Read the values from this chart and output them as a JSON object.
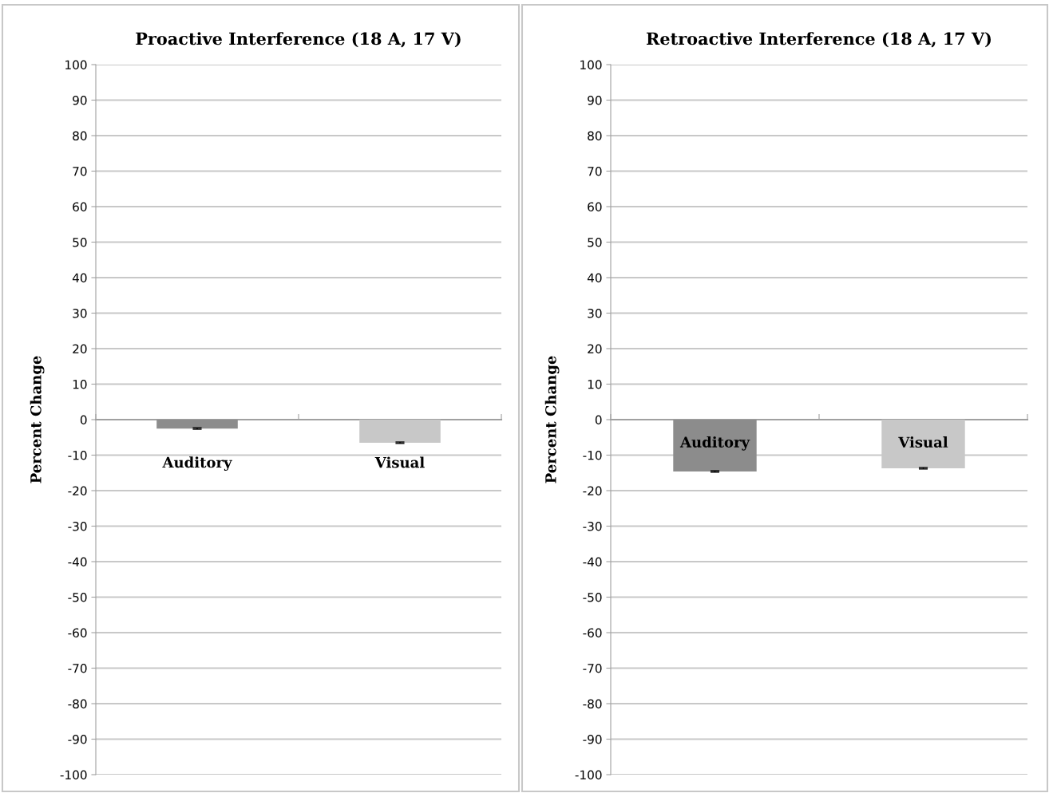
{
  "chart_data": [
    {
      "type": "bar",
      "title": "Proactive Interference (18 A, 17 V)",
      "ylabel": "Percent Change",
      "categories": [
        "Auditory",
        "Visual"
      ],
      "values": [
        -2.5,
        -6.5
      ],
      "colors": [
        "#8c8c8c",
        "#c8c8c8"
      ],
      "errors": [
        0.2,
        0.2
      ],
      "ylim": [
        -100,
        100
      ],
      "yticks": [
        -100,
        -90,
        -80,
        -70,
        -60,
        -50,
        -40,
        -30,
        -20,
        -10,
        0,
        10,
        20,
        30,
        40,
        50,
        60,
        70,
        80,
        90,
        100
      ],
      "grid": "y",
      "legend": false
    },
    {
      "type": "bar",
      "title": "Retroactive Interference (18 A, 17 V)",
      "ylabel": "Percent Change",
      "categories": [
        "Auditory",
        "Visual"
      ],
      "values": [
        -14.6,
        -13.7
      ],
      "colors": [
        "#8c8c8c",
        "#c8c8c8"
      ],
      "errors": [
        0.2,
        0.2
      ],
      "ylim": [
        -100,
        100
      ],
      "yticks": [
        -100,
        -90,
        -80,
        -70,
        -60,
        -50,
        -40,
        -30,
        -20,
        -10,
        0,
        10,
        20,
        30,
        40,
        50,
        60,
        70,
        80,
        90,
        100
      ],
      "grid": "y",
      "legend": false
    }
  ]
}
